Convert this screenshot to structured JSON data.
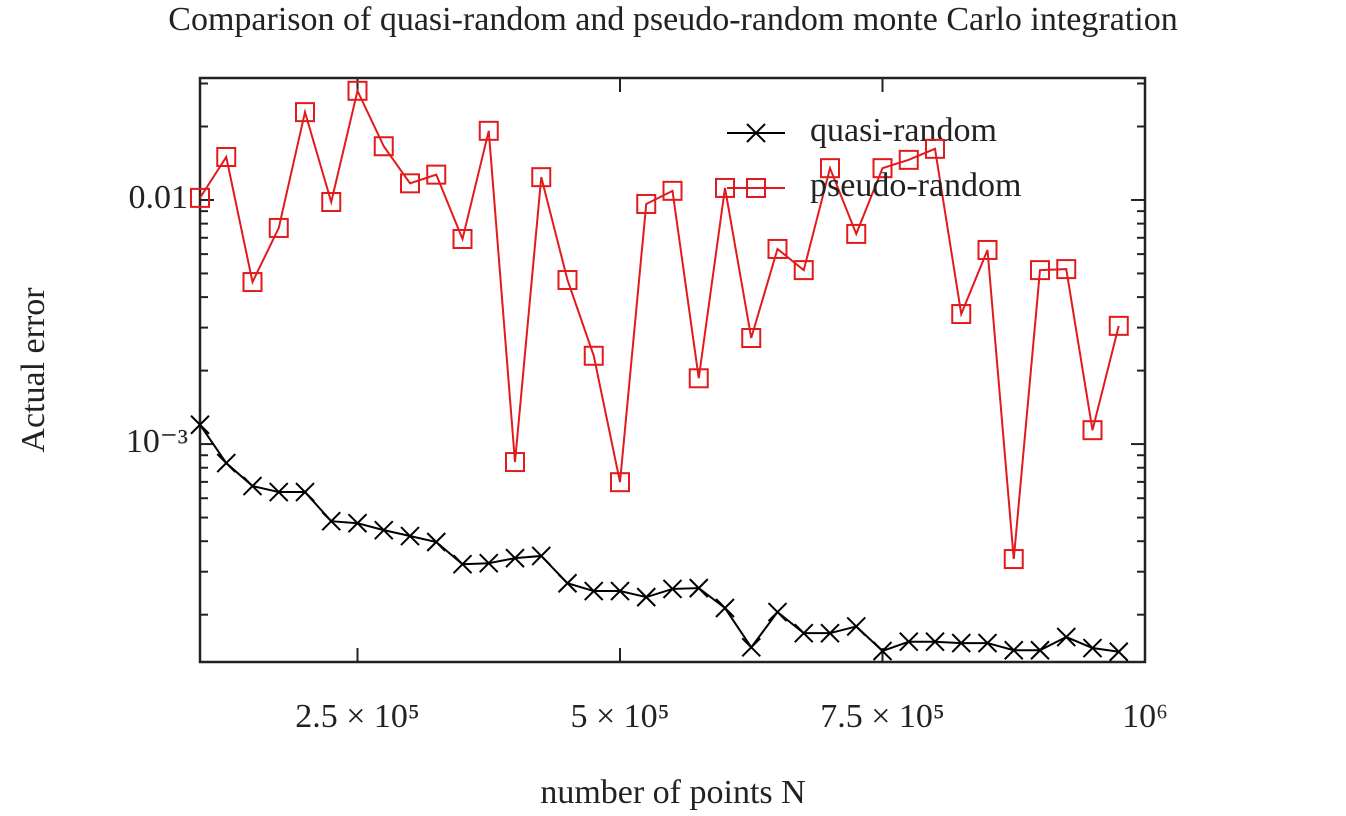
{
  "chart_data": {
    "type": "line",
    "title": "Comparison of quasi-random and pseudo-random monte Carlo integration",
    "xlabel": "number of points N",
    "ylabel": "Actual error",
    "x": [
      100000,
      125000,
      150000,
      175000,
      200000,
      225000,
      250000,
      275000,
      300000,
      325000,
      350000,
      375000,
      400000,
      425000,
      450000,
      475000,
      500000,
      525000,
      550000,
      575000,
      600000,
      625000,
      650000,
      675000,
      700000,
      725000,
      750000,
      775000,
      800000,
      825000,
      850000,
      875000,
      900000,
      925000,
      950000,
      975000
    ],
    "series": [
      {
        "name": "quasi-random",
        "color": "#000000",
        "marker": "x",
        "values": [
          0.0012,
          0.000836,
          0.000673,
          0.000636,
          0.000636,
          0.000483,
          0.000474,
          0.000444,
          0.00042,
          0.000397,
          0.000322,
          0.000325,
          0.000341,
          0.000348,
          0.000269,
          0.00025,
          0.00025,
          0.000236,
          0.000255,
          0.000257,
          0.000213,
          0.000147,
          0.000205,
          0.000168,
          0.000168,
          0.000179,
          0.000142,
          0.000155,
          0.000155,
          0.000153,
          0.000153,
          0.000143,
          0.000143,
          0.000162,
          0.000146,
          0.000141
        ]
      },
      {
        "name": "pseudo-random",
        "color": "#e31a1c",
        "marker": "square",
        "values": [
          0.0102,
          0.015,
          0.00461,
          0.00768,
          0.0229,
          0.00981,
          0.028,
          0.0166,
          0.0117,
          0.0127,
          0.00692,
          0.0192,
          0.000844,
          0.0124,
          0.0047,
          0.0023,
          0.000698,
          0.00963,
          0.0109,
          0.00186,
          0.0112,
          0.00272,
          0.0063,
          0.00516,
          0.0135,
          0.00726,
          0.0135,
          0.0146,
          0.0162,
          0.00341,
          0.00624,
          0.000338,
          0.00516,
          0.00521,
          0.00114,
          0.00305
        ]
      }
    ],
    "xlim": [
      100000,
      1000000
    ],
    "xticks": [
      {
        "value": 250000,
        "label": "2.5 × 10⁵"
      },
      {
        "value": 500000,
        "label": "5 × 10⁵"
      },
      {
        "value": 750000,
        "label": "7.5 × 10⁵"
      },
      {
        "value": 1000000,
        "label": "10⁶"
      }
    ],
    "ylim": [
      0.000128,
      0.0316
    ],
    "yscale": "log",
    "yticks": [
      {
        "value": 0.001,
        "label": "10⁻³"
      },
      0.01
    ],
    "yminorticks": [
      0.0002,
      0.0003,
      0.0004,
      0.0005,
      0.0006,
      0.0007,
      0.0008,
      0.0009,
      0.002,
      0.003,
      0.004,
      0.005,
      0.006,
      0.007,
      0.008,
      0.009,
      0.02,
      0.03
    ],
    "legend": "upper right"
  }
}
